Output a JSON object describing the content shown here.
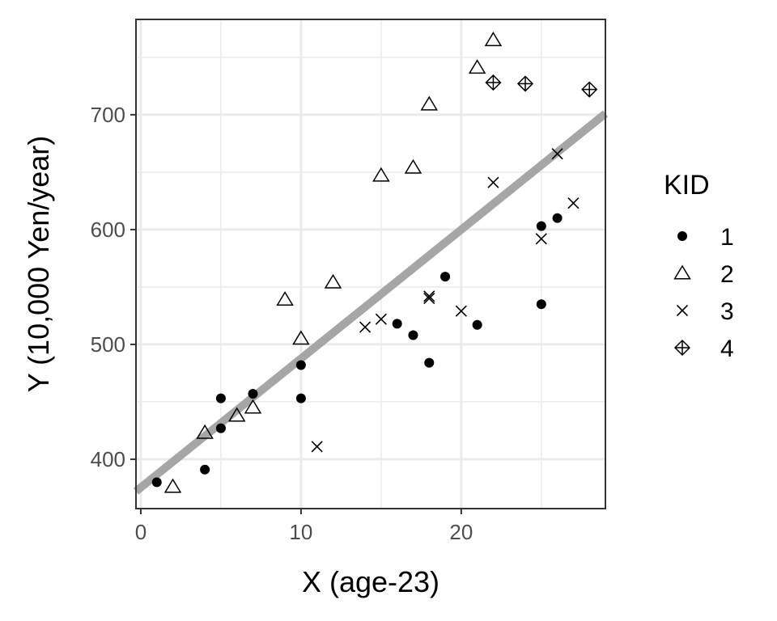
{
  "chart_data": {
    "type": "scatter",
    "xlabel": "X (age-23)",
    "ylabel": "Y (10,000 Yen/year)",
    "xlim": [
      -0.3,
      29
    ],
    "ylim": [
      357,
      783
    ],
    "x_ticks": [
      0,
      10,
      20
    ],
    "y_ticks": [
      400,
      500,
      600,
      700
    ],
    "grid": true,
    "legend": {
      "title": "KID",
      "placement": "right"
    },
    "series": [
      {
        "name": "1",
        "shape": "filled-circle",
        "x": [
          1,
          4,
          5,
          5,
          7,
          10,
          10,
          16,
          17,
          18,
          19,
          21,
          25,
          25,
          26
        ],
        "y": [
          380,
          391,
          427,
          453,
          457,
          453,
          482,
          518,
          508,
          484,
          559,
          517,
          603,
          535,
          610
        ]
      },
      {
        "name": "2",
        "shape": "triangle",
        "x": [
          2,
          4,
          6,
          7,
          9,
          10,
          12,
          15,
          17,
          18,
          21,
          22
        ],
        "y": [
          376,
          423,
          438,
          445,
          539,
          505,
          554,
          647,
          654,
          709,
          741,
          765
        ]
      },
      {
        "name": "3",
        "shape": "cross",
        "x": [
          11,
          14,
          15,
          18,
          18,
          20,
          22,
          25,
          26,
          27
        ],
        "y": [
          411,
          515,
          522,
          540,
          542,
          529,
          641,
          592,
          666,
          623
        ]
      },
      {
        "name": "4",
        "shape": "diamond-plus",
        "x": [
          22,
          24,
          28
        ],
        "y": [
          728,
          727,
          722
        ]
      }
    ],
    "trend_line": {
      "x": [
        -0.3,
        29
      ],
      "y": [
        372,
        701
      ],
      "color": "#a6a6a6"
    },
    "colors": {
      "points": "#000000",
      "grid": "#ebebeb",
      "panel_border": "#333333"
    }
  }
}
